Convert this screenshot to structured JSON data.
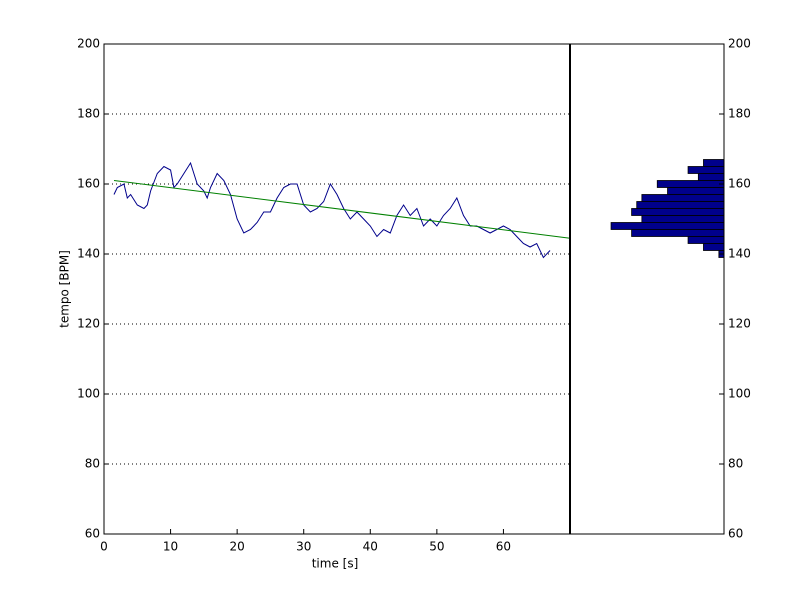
{
  "chart_data": [
    {
      "type": "line",
      "xlabel": "time [s]",
      "ylabel": "tempo [BPM]",
      "xlim": [
        0,
        70
      ],
      "ylim": [
        60,
        200
      ],
      "xticks": [
        0,
        10,
        20,
        30,
        40,
        50,
        60
      ],
      "yticks": [
        60,
        80,
        100,
        120,
        140,
        160,
        180,
        200
      ],
      "grid": true,
      "series": [
        {
          "color": "#00008b",
          "x": [
            1.5,
            2,
            3,
            3.5,
            4,
            5,
            6,
            6.5,
            7,
            8,
            9,
            10,
            10.5,
            11,
            12,
            13,
            14,
            15,
            15.5,
            16,
            17,
            18,
            19,
            20,
            21,
            22,
            23,
            24,
            25,
            26,
            27,
            28,
            29,
            30,
            31,
            32,
            33,
            34,
            35,
            36,
            37,
            38,
            39,
            40,
            41,
            42,
            43,
            44,
            45,
            46,
            47,
            48,
            49,
            50,
            51,
            52,
            53,
            54,
            55,
            56,
            57,
            58,
            59,
            60,
            61,
            62,
            63,
            64,
            65,
            66,
            67
          ],
          "values": [
            157,
            159,
            160,
            156,
            157,
            154,
            153,
            154,
            158,
            163,
            165,
            164,
            159,
            160,
            163,
            166,
            160,
            158,
            156,
            159,
            163,
            161,
            157,
            150,
            146,
            147,
            149,
            152,
            152,
            156,
            159,
            160,
            160,
            154,
            152,
            153,
            155,
            160,
            157,
            153,
            150,
            152,
            150,
            148,
            145,
            147,
            146,
            151,
            154,
            151,
            153,
            148,
            150,
            148,
            151,
            153,
            156,
            151,
            148,
            148,
            147,
            146,
            147,
            148,
            147,
            145,
            143,
            142,
            143,
            139,
            141
          ]
        },
        {
          "color": "#008000",
          "x": [
            1.5,
            70
          ],
          "values": [
            161,
            144.5
          ]
        }
      ]
    },
    {
      "type": "histogram",
      "orientation": "horizontal",
      "color": "#00008b",
      "bins": [
        139,
        141,
        143,
        145,
        147,
        149,
        151,
        153,
        155,
        157,
        159,
        161,
        163,
        165,
        167
      ],
      "counts": [
        1,
        4,
        7,
        18,
        22,
        16,
        18,
        17,
        16,
        11,
        13,
        5,
        7,
        4
      ],
      "xlim": [
        30,
        0
      ],
      "ylim": [
        60,
        200
      ],
      "yticks": [
        60,
        80,
        100,
        120,
        140,
        160,
        180,
        200
      ]
    }
  ]
}
